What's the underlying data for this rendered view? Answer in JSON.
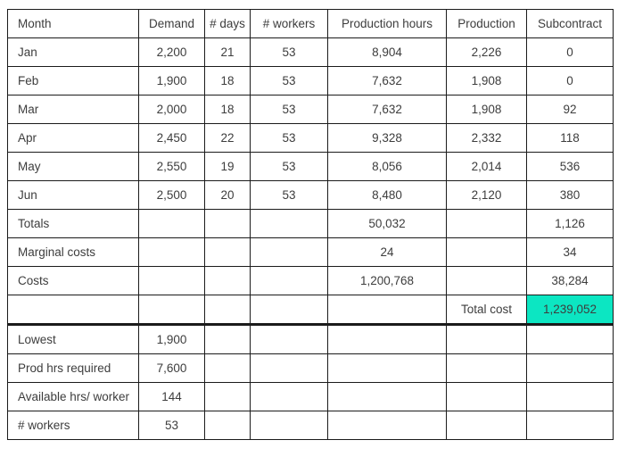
{
  "accent_color": "#0ce6c2",
  "table": {
    "columns": [
      "Month",
      "Demand",
      "# days",
      "# workers",
      "Production hours",
      "Production",
      "Subcontract"
    ],
    "rows": [
      [
        "Jan",
        "2,200",
        "21",
        "53",
        "8,904",
        "2,226",
        "0"
      ],
      [
        "Feb",
        "1,900",
        "18",
        "53",
        "7,632",
        "1,908",
        "0"
      ],
      [
        "Mar",
        "2,000",
        "18",
        "53",
        "7,632",
        "1,908",
        "92"
      ],
      [
        "Apr",
        "2,450",
        "22",
        "53",
        "9,328",
        "2,332",
        "118"
      ],
      [
        "May",
        "2,550",
        "19",
        "53",
        "8,056",
        "2,014",
        "536"
      ],
      [
        "Jun",
        "2,500",
        "20",
        "53",
        "8,480",
        "2,120",
        "380"
      ],
      [
        "Totals",
        "",
        "",
        "",
        "50,032",
        "",
        "1,126"
      ],
      [
        "Marginal costs",
        "",
        "",
        "",
        "24",
        "",
        "34"
      ],
      [
        "Costs",
        "",
        "",
        "",
        "1,200,768",
        "",
        "38,284"
      ],
      [
        "",
        "",
        "",
        "",
        "",
        "Total cost",
        "1,239,052"
      ],
      [
        "Lowest",
        "1,900",
        "",
        "",
        "",
        "",
        ""
      ],
      [
        "Prod hrs required",
        "7,600",
        "",
        "",
        "",
        "",
        ""
      ],
      [
        "Available hrs/ worker",
        "144",
        "",
        "",
        "",
        "",
        ""
      ],
      [
        "# workers",
        "53",
        "",
        "",
        "",
        "",
        ""
      ]
    ],
    "highlight_cell": {
      "row": 9,
      "col": 6,
      "color": "#0ce6c2"
    },
    "section_break_after_row": 9
  },
  "chart_data": {
    "type": "table",
    "title": "",
    "columns": [
      "Month",
      "Demand",
      "# days",
      "# workers",
      "Production hours",
      "Production",
      "Subcontract"
    ],
    "months": [
      "Jan",
      "Feb",
      "Mar",
      "Apr",
      "May",
      "Jun"
    ],
    "demand": [
      2200,
      1900,
      2000,
      2450,
      2550,
      2500
    ],
    "days": [
      21,
      18,
      18,
      22,
      19,
      20
    ],
    "workers": [
      53,
      53,
      53,
      53,
      53,
      53
    ],
    "production_hours": [
      8904,
      7632,
      7632,
      9328,
      8056,
      8480
    ],
    "production": [
      2226,
      1908,
      1908,
      2332,
      2014,
      2120
    ],
    "subcontract": [
      0,
      0,
      92,
      118,
      536,
      380
    ],
    "totals": {
      "production_hours": 50032,
      "subcontract": 1126
    },
    "marginal_costs": {
      "production_hours": 24,
      "subcontract": 34
    },
    "costs": {
      "production_hours": 1200768,
      "subcontract": 38284
    },
    "total_cost_label": "Total cost",
    "total_cost": 1239052,
    "summary": {
      "lowest": 1900,
      "prod_hrs_required": 7600,
      "available_hrs_per_worker": 144,
      "num_workers": 53
    }
  }
}
